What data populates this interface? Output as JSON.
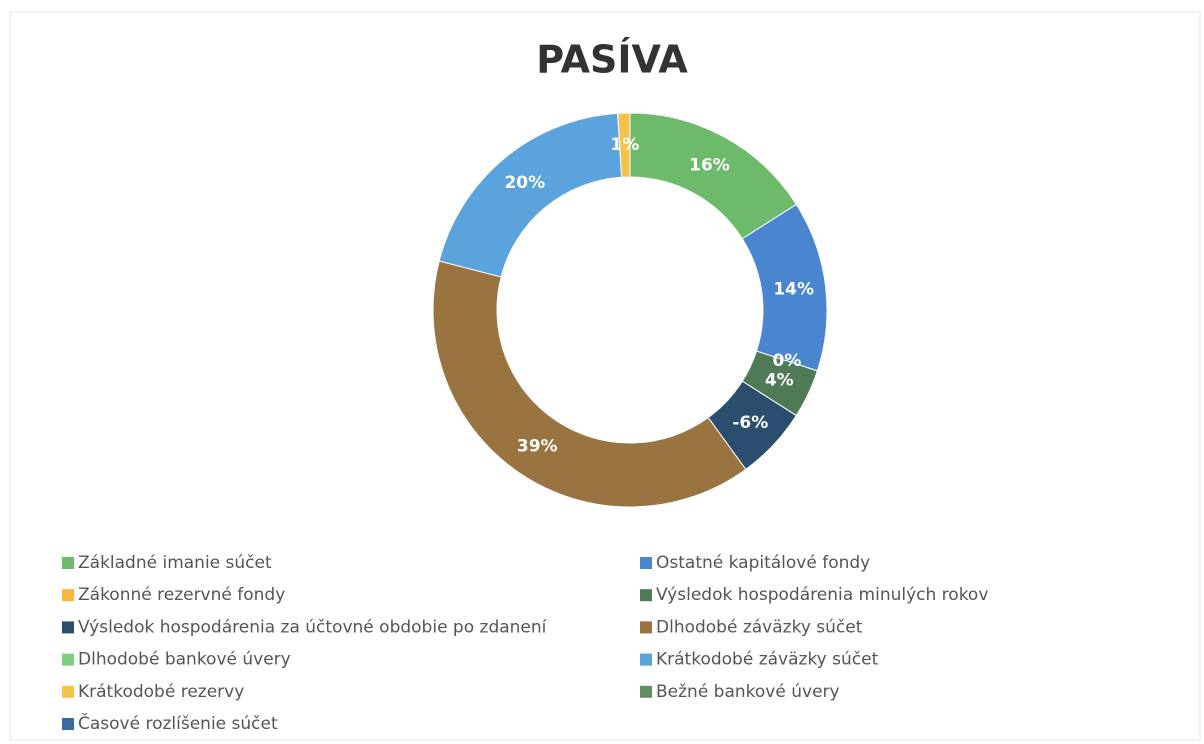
{
  "chart_data": {
    "type": "doughnut",
    "title": "PASÍVA",
    "categories": [
      "Základné imanie súčet",
      "Ostatné kapitálové fondy",
      "Zákonné rezervné fondy",
      "Výsledok hospodárenia minulých rokov",
      "Výsledok hospodárenia za účtovné obdobie po zdanení",
      "Dlhodobé záväzky súčet",
      "Dlhodobé bankové úvery",
      "Krátkodobé záväzky súčet",
      "Krátkodobé rezervy",
      "Bežné bankové úvery",
      "Časové rozlíšenie súčet"
    ],
    "values": [
      16,
      14,
      0,
      4,
      -6,
      39,
      null,
      20,
      1,
      null,
      null
    ],
    "value_labels": [
      "16%",
      "14%",
      "0%",
      "4%",
      "-6%",
      "39%",
      null,
      "20%",
      "1%",
      null,
      null
    ],
    "colors": [
      "#6dbb6a",
      "#4a86d0",
      "#f5b942",
      "#4f7a56",
      "#2b4e6f",
      "#9a7440",
      "#7fcf7f",
      "#5aa3dc",
      "#f7c24a",
      "#628f62",
      "#3b6aa0"
    ],
    "legend": "bottom"
  }
}
